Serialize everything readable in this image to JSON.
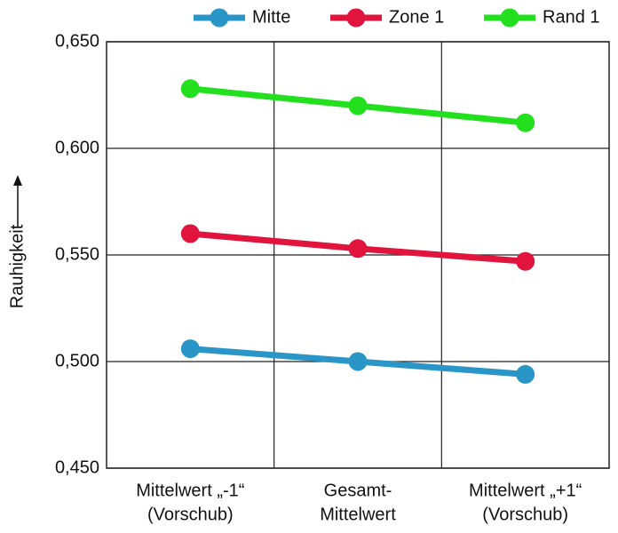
{
  "chart_data": {
    "type": "line",
    "y_label": "Rauhigkeit",
    "categories": [
      [
        "Mittelwert „-1“",
        "(Vorschub)"
      ],
      [
        "Gesamt-",
        "Mittelwert"
      ],
      [
        "Mittelwert „+1“",
        "(Vorschub)"
      ]
    ],
    "series": [
      {
        "name": "Mitte",
        "color": "#2a96c8",
        "values": [
          0.506,
          0.5,
          0.494
        ]
      },
      {
        "name": "Zone 1",
        "color": "#e0143c",
        "values": [
          0.56,
          0.553,
          0.547
        ]
      },
      {
        "name": "Rand 1",
        "color": "#22e01e",
        "values": [
          0.628,
          0.62,
          0.612
        ]
      }
    ],
    "ylim": [
      0.45,
      0.65
    ],
    "yticks": [
      {
        "value": 0.45,
        "label": "0,450"
      },
      {
        "value": 0.5,
        "label": "0,500"
      },
      {
        "value": 0.55,
        "label": "0,550"
      },
      {
        "value": 0.6,
        "label": "0,600"
      },
      {
        "value": 0.65,
        "label": "0,650"
      }
    ],
    "grid": true,
    "legend": "top"
  }
}
